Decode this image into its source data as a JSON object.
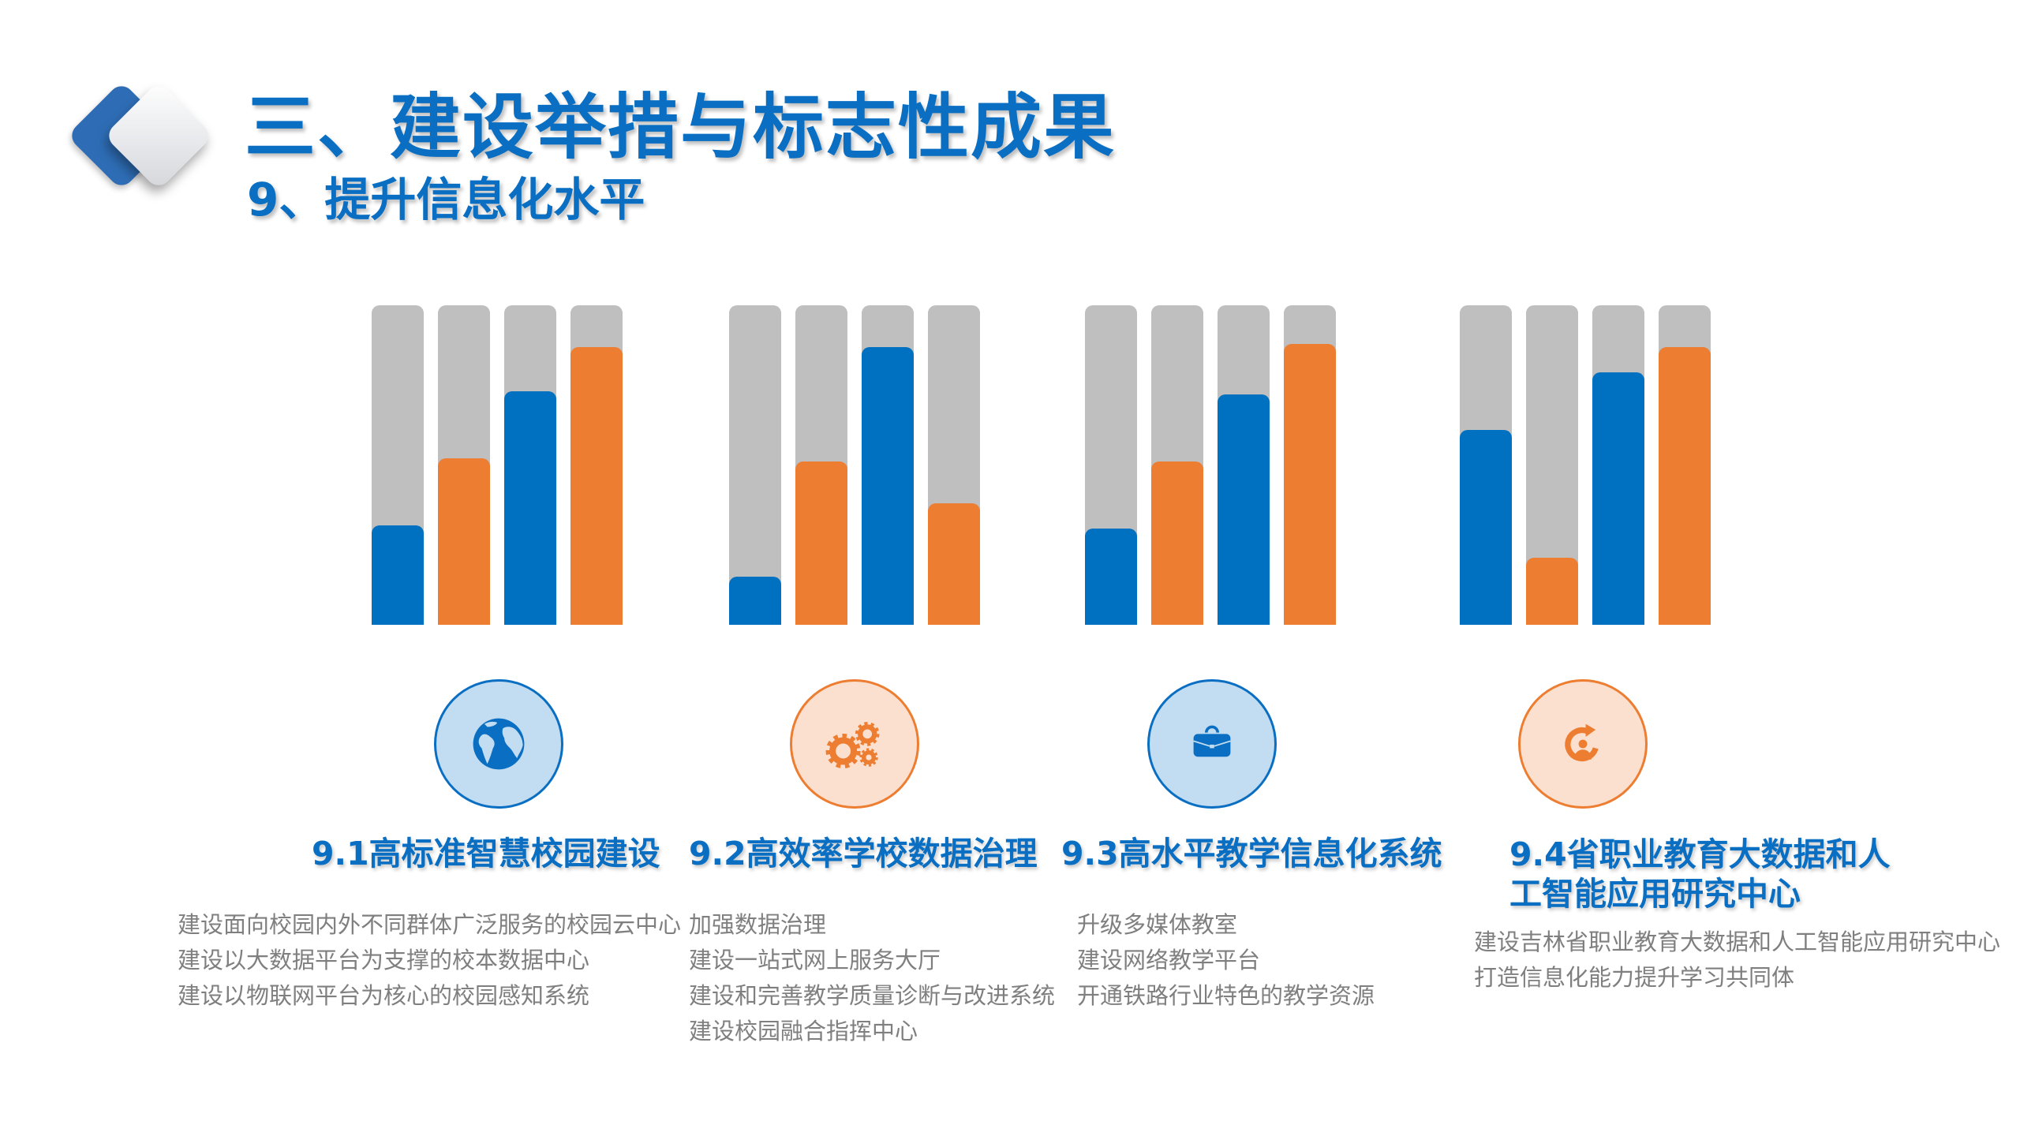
{
  "header": {
    "title": "三、建设举措与标志性成果",
    "subtitle": "9、提升信息化水平"
  },
  "colors": {
    "blue": "#0070c0",
    "orange": "#ed7d31",
    "track_gray": "#bfbfbf",
    "text_gray": "#7f7f7f"
  },
  "chart_data": {
    "type": "bar",
    "title": "",
    "xlabel": "",
    "ylabel": "",
    "ylim": [
      0,
      1
    ],
    "grid": false,
    "legend": "none",
    "note": "Decorative progress-style bars: each bar is a fraction of a full gray track",
    "groups": [
      {
        "name": "9.1高标准智慧校园建设",
        "values": [
          0.31,
          0.52,
          0.73,
          0.87
        ],
        "colors": [
          "blue",
          "orange",
          "blue",
          "orange"
        ]
      },
      {
        "name": "9.2高效率学校数据治理",
        "values": [
          0.15,
          0.51,
          0.87,
          0.38
        ],
        "colors": [
          "blue",
          "orange",
          "blue",
          "orange"
        ]
      },
      {
        "name": "9.3高水平教学信息化系统",
        "values": [
          0.3,
          0.51,
          0.72,
          0.88
        ],
        "colors": [
          "blue",
          "orange",
          "blue",
          "orange"
        ]
      },
      {
        "name": "9.4省职业教育大数据和人工智能应用研究中心",
        "values": [
          0.61,
          0.21,
          0.79,
          0.87
        ],
        "colors": [
          "blue",
          "orange",
          "blue",
          "orange"
        ]
      }
    ]
  },
  "sections": [
    {
      "icon": "globe-icon",
      "theme": "blue",
      "heading_lines": [
        "9.1高标准智慧校园建设"
      ],
      "items": [
        "建设面向校园内外不同群体广泛服务的校园云中心",
        "建设以大数据平台为支撑的校本数据中心",
        "建设以物联网平台为核心的校园感知系统"
      ]
    },
    {
      "icon": "gears-icon",
      "theme": "orange",
      "heading_lines": [
        "9.2高效率学校数据治理"
      ],
      "items": [
        "加强数据治理",
        "建设一站式网上服务大厅",
        "建设和完善教学质量诊断与改进系统",
        "建设校园融合指挥中心"
      ]
    },
    {
      "icon": "briefcase-icon",
      "theme": "blue",
      "heading_lines": [
        "9.3高水平教学信息化系统"
      ],
      "items": [
        "升级多媒体教室",
        "建设网络教学平台",
        "开通铁路行业特色的教学资源"
      ]
    },
    {
      "icon": "person-refresh-icon",
      "theme": "orange",
      "heading_lines": [
        "9.4省职业教育大数据和人",
        "工智能应用研究中心"
      ],
      "items": [
        "建设吉林省职业教育大数据和人工智能应用研究中心",
        "打造信息化能力提升学习共同体"
      ]
    }
  ]
}
